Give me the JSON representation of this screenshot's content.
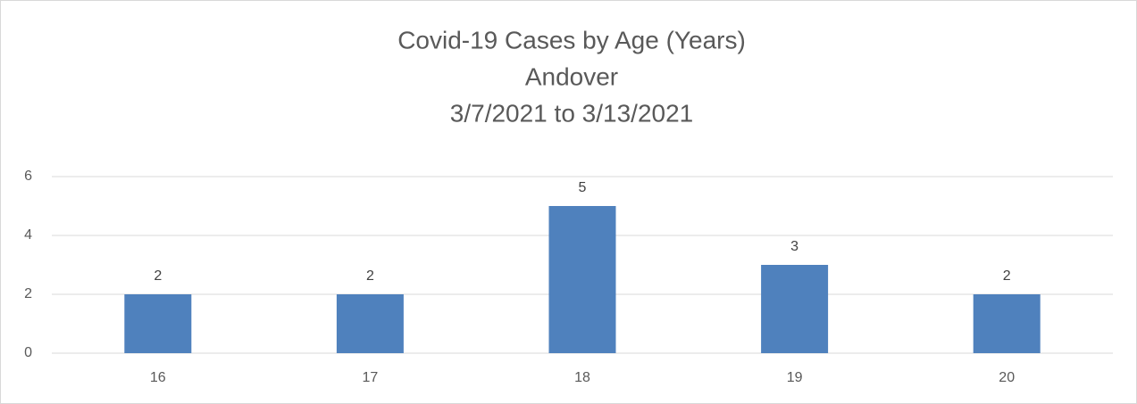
{
  "chart_data": {
    "type": "bar",
    "title": [
      "Covid-19 Cases by Age (Years)",
      "Andover",
      "3/7/2021 to 3/13/2021"
    ],
    "categories": [
      "16",
      "17",
      "18",
      "19",
      "20"
    ],
    "values": [
      2,
      2,
      5,
      3,
      2
    ],
    "color": "#4f81bd",
    "ylim": [
      0,
      6
    ],
    "yticks": [
      0,
      2,
      4,
      6
    ],
    "grid": true
  }
}
